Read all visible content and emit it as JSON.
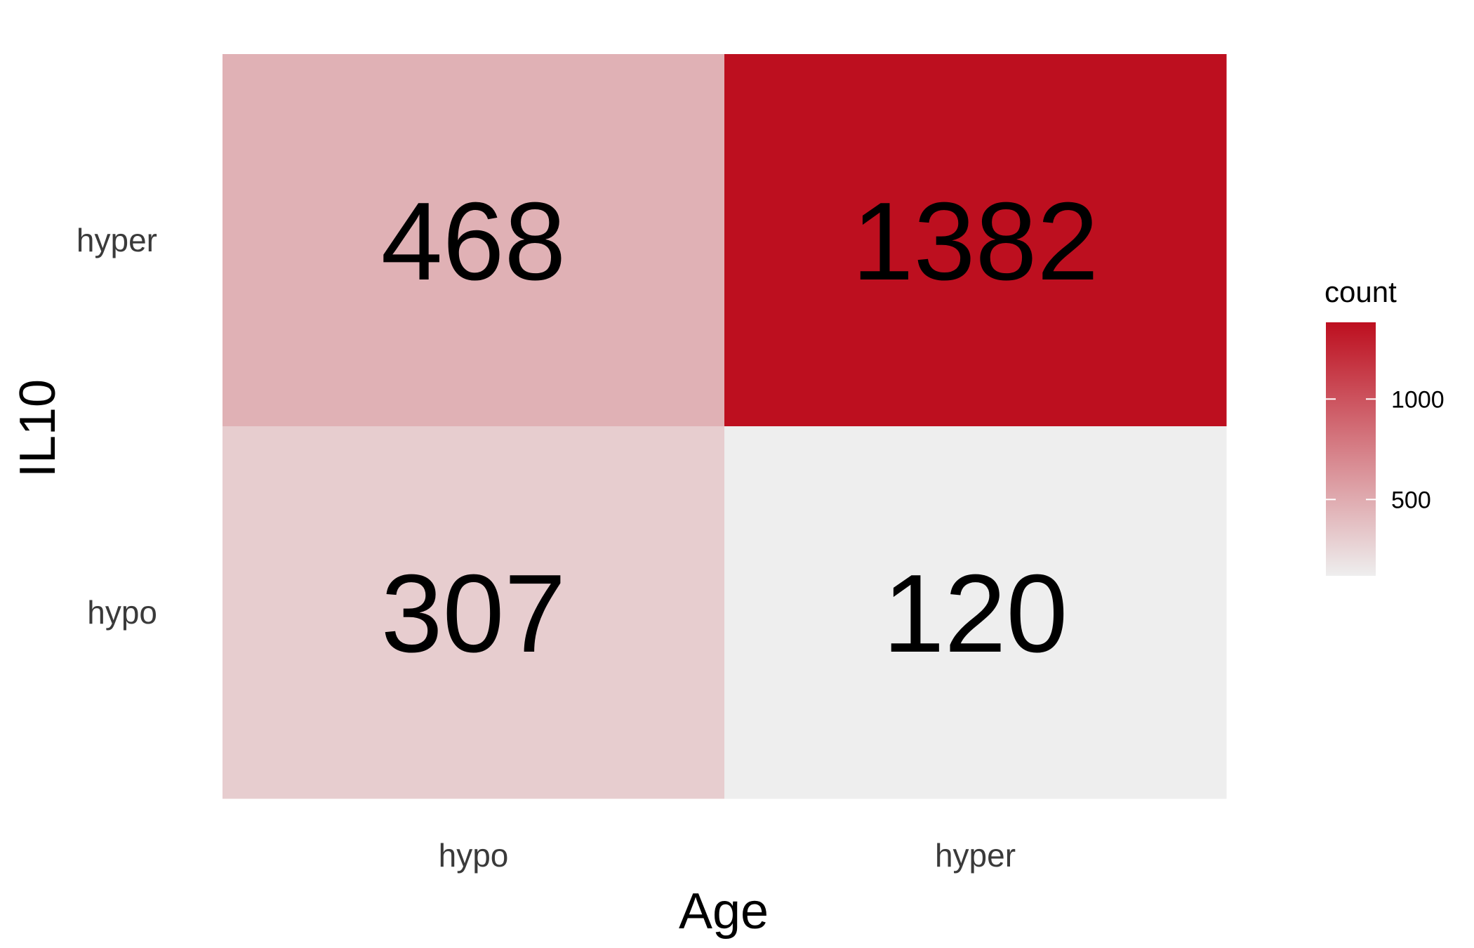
{
  "chart_data": {
    "type": "heatmap",
    "x_categories": [
      "hypo",
      "hyper"
    ],
    "y_categories": [
      "hyper",
      "hypo"
    ],
    "cells": [
      {
        "x": "hypo",
        "y": "hyper",
        "value": 468
      },
      {
        "x": "hyper",
        "y": "hyper",
        "value": 1382
      },
      {
        "x": "hypo",
        "y": "hypo",
        "value": 307
      },
      {
        "x": "hyper",
        "y": "hypo",
        "value": 120
      }
    ],
    "xlabel": "Age",
    "ylabel": "IL10",
    "legend": {
      "title": "count",
      "placement": "right",
      "range": [
        120,
        1382
      ],
      "ticks": [
        500,
        1000
      ],
      "low_color": "#eeeeee",
      "high_color": "#bd0f1f"
    }
  }
}
